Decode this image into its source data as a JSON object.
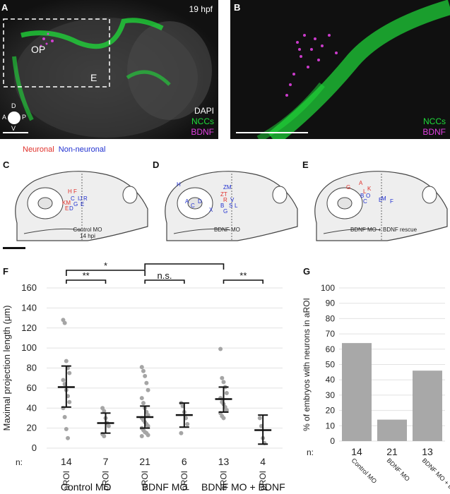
{
  "panelA": {
    "label": "A",
    "time": "19 hpf",
    "op": "OP",
    "e": "E",
    "axis": {
      "d": "D",
      "v": "V",
      "a": "A",
      "p": "P"
    },
    "stains": [
      "DAPI",
      "NCCs",
      "BDNF"
    ]
  },
  "panelB": {
    "label": "B",
    "stains": [
      "NCCs",
      "BDNF"
    ]
  },
  "legend": {
    "neuronal": "Neuronal",
    "nonneuronal": "Non-neuronal"
  },
  "panelC": {
    "label": "C",
    "caption1": "Control MO",
    "caption2": "14 hpi"
  },
  "panelD": {
    "label": "D",
    "caption1": "BDNF MO"
  },
  "panelE": {
    "label": "E",
    "caption1": "BDNF MO + BDNF rescue"
  },
  "colors": {
    "neuronal": "#e0302a",
    "nonneuronal": "#2030d0",
    "nccs": "#1fdc3a",
    "bdnf": "#e040e0",
    "bar": "#a8a8a8"
  },
  "chart_data": [
    {
      "type": "scatter",
      "panel": "F",
      "ylabel": "Maximal projection length (μm)",
      "ylim": [
        0,
        160
      ],
      "yticks": [
        0,
        20,
        40,
        60,
        80,
        100,
        120,
        140,
        160
      ],
      "n_label": "n:",
      "groups": [
        {
          "roi": "aROI",
          "n": "14",
          "mean": 61,
          "sem_low": 41,
          "sem_high": 82,
          "points": [
            128,
            125,
            87,
            80,
            75,
            68,
            64,
            58,
            52,
            46,
            40,
            31,
            19,
            10
          ]
        },
        {
          "roi": "pROI",
          "n": "7",
          "mean": 25,
          "sem_low": 15,
          "sem_high": 35,
          "points": [
            40,
            37,
            30,
            25,
            22,
            14,
            12
          ]
        },
        {
          "roi": "aROI",
          "n": "21",
          "mean": 31,
          "sem_low": 20,
          "sem_high": 42,
          "points": [
            81,
            77,
            72,
            65,
            58,
            50,
            45,
            40,
            36,
            33,
            30,
            28,
            26,
            24,
            22,
            20,
            18,
            16,
            15,
            13,
            12
          ]
        },
        {
          "roi": "pROI",
          "n": "6",
          "mean": 33,
          "sem_low": 21,
          "sem_high": 45,
          "points": [
            45,
            42,
            36,
            30,
            24,
            15
          ]
        },
        {
          "roi": "aROI",
          "n": "13",
          "mean": 49,
          "sem_low": 36,
          "sem_high": 61,
          "points": [
            99,
            70,
            66,
            61,
            55,
            50,
            46,
            44,
            41,
            38,
            35,
            32,
            30
          ]
        },
        {
          "roi": "pROI",
          "n": "4",
          "mean": 18,
          "sem_low": 4,
          "sem_high": 33,
          "points": [
            30,
            22,
            10,
            5
          ]
        }
      ],
      "group_labels": [
        "Control MO",
        "BDNF MO",
        "BDNF MO + BDNF"
      ],
      "significance": [
        {
          "label": "**",
          "from": 0,
          "to": 1
        },
        {
          "label": "*",
          "from": 0,
          "to": 2
        },
        {
          "label": "n.s.",
          "from": 2,
          "to": 3
        },
        {
          "label": "*",
          "from": 2,
          "to": 4
        },
        {
          "label": "**",
          "from": 4,
          "to": 5
        }
      ]
    },
    {
      "type": "bar",
      "panel": "G",
      "ylabel": "% of embryos with neurons in aROI",
      "ylim": [
        0,
        100
      ],
      "yticks": [
        0,
        10,
        20,
        30,
        40,
        50,
        60,
        70,
        80,
        90,
        100
      ],
      "n_label": "n:",
      "categories": [
        "Control MO",
        "BDNF MO",
        "BDNF MO + BDNF"
      ],
      "n": [
        "14",
        "21",
        "13"
      ],
      "values": [
        64,
        14,
        46
      ]
    }
  ],
  "labels": {
    "F": "F",
    "G": "G"
  }
}
